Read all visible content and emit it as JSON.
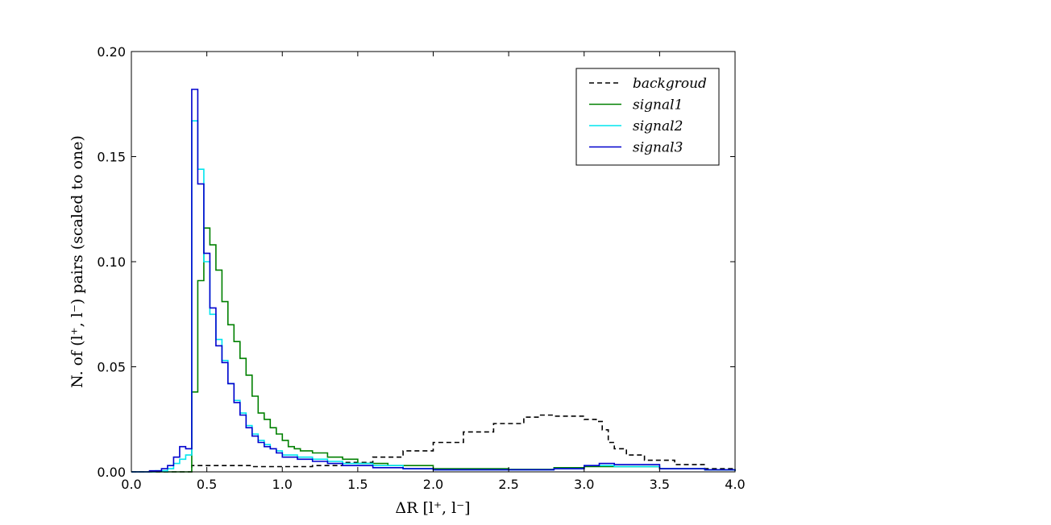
{
  "chart_data": {
    "type": "line",
    "style": "step-histogram",
    "xlabel": "ΔR [l⁺, l⁻]",
    "ylabel": "N. of (l⁺, l⁻) pairs (scaled to one)",
    "xlim": [
      0.0,
      4.0
    ],
    "ylim": [
      0.0,
      0.2
    ],
    "x_ticks": [
      "0.0",
      "0.5",
      "1.0",
      "1.5",
      "2.0",
      "2.5",
      "3.0",
      "3.5",
      "4.0"
    ],
    "y_ticks": [
      "0.00",
      "0.05",
      "0.10",
      "0.15",
      "0.20"
    ],
    "grid": false,
    "legend_position": "top-right",
    "bin_width": 0.04,
    "series": [
      {
        "name": "backgroud",
        "color": "#000000",
        "dash": "dashed",
        "x": [
          0.0,
          0.4,
          0.8,
          1.2,
          1.4,
          1.6,
          1.8,
          2.0,
          2.2,
          2.4,
          2.6,
          2.7,
          2.8,
          3.0,
          3.08,
          3.12,
          3.16,
          3.2,
          3.28,
          3.4,
          3.6,
          3.8,
          4.0
        ],
        "values": [
          0.0,
          0.003,
          0.0025,
          0.003,
          0.0045,
          0.007,
          0.01,
          0.014,
          0.019,
          0.023,
          0.026,
          0.027,
          0.0265,
          0.025,
          0.024,
          0.02,
          0.014,
          0.011,
          0.008,
          0.0055,
          0.0035,
          0.0015,
          0.0007
        ]
      },
      {
        "name": "signal1",
        "color": "#008000",
        "dash": "solid",
        "x": [
          0.0,
          0.36,
          0.4,
          0.44,
          0.48,
          0.52,
          0.56,
          0.6,
          0.64,
          0.68,
          0.72,
          0.76,
          0.8,
          0.84,
          0.88,
          0.92,
          0.96,
          1.0,
          1.04,
          1.08,
          1.12,
          1.2,
          1.3,
          1.4,
          1.5,
          1.7,
          2.0,
          2.5,
          2.8,
          3.0,
          3.2,
          3.5,
          3.8,
          4.0
        ],
        "values": [
          0.0,
          0.0,
          0.038,
          0.091,
          0.116,
          0.108,
          0.096,
          0.081,
          0.07,
          0.062,
          0.054,
          0.046,
          0.036,
          0.028,
          0.025,
          0.021,
          0.018,
          0.015,
          0.012,
          0.011,
          0.01,
          0.009,
          0.007,
          0.006,
          0.004,
          0.003,
          0.0015,
          0.0012,
          0.002,
          0.0025,
          0.0025,
          0.0015,
          0.001,
          0.0005
        ]
      },
      {
        "name": "signal2",
        "color": "#00e5ee",
        "dash": "solid",
        "x": [
          0.0,
          0.16,
          0.24,
          0.28,
          0.32,
          0.36,
          0.4,
          0.44,
          0.48,
          0.52,
          0.56,
          0.6,
          0.64,
          0.68,
          0.72,
          0.76,
          0.8,
          0.84,
          0.88,
          0.92,
          0.96,
          1.0,
          1.1,
          1.2,
          1.3,
          1.4,
          1.6,
          1.8,
          2.0,
          2.4,
          2.8,
          3.0,
          3.1,
          3.2,
          3.5,
          3.8,
          4.0
        ],
        "values": [
          0.0,
          0.0005,
          0.0015,
          0.004,
          0.006,
          0.008,
          0.167,
          0.144,
          0.1,
          0.075,
          0.063,
          0.053,
          0.042,
          0.034,
          0.028,
          0.022,
          0.018,
          0.015,
          0.013,
          0.011,
          0.01,
          0.008,
          0.007,
          0.006,
          0.005,
          0.004,
          0.003,
          0.0015,
          0.001,
          0.001,
          0.0015,
          0.003,
          0.003,
          0.0025,
          0.0015,
          0.001,
          0.0005
        ]
      },
      {
        "name": "signal3",
        "color": "#0000cd",
        "dash": "solid",
        "x": [
          0.0,
          0.12,
          0.2,
          0.24,
          0.28,
          0.32,
          0.36,
          0.4,
          0.44,
          0.48,
          0.52,
          0.56,
          0.6,
          0.64,
          0.68,
          0.72,
          0.76,
          0.8,
          0.84,
          0.88,
          0.92,
          0.96,
          1.0,
          1.1,
          1.2,
          1.3,
          1.4,
          1.6,
          1.8,
          2.0,
          2.4,
          2.8,
          3.0,
          3.1,
          3.2,
          3.5,
          3.8,
          4.0
        ],
        "values": [
          0.0,
          0.0005,
          0.0015,
          0.003,
          0.007,
          0.012,
          0.011,
          0.182,
          0.137,
          0.104,
          0.078,
          0.06,
          0.052,
          0.042,
          0.033,
          0.027,
          0.021,
          0.017,
          0.014,
          0.012,
          0.011,
          0.009,
          0.007,
          0.006,
          0.005,
          0.004,
          0.003,
          0.002,
          0.0015,
          0.001,
          0.001,
          0.0015,
          0.003,
          0.004,
          0.0035,
          0.0015,
          0.001,
          0.0005
        ]
      }
    ]
  }
}
